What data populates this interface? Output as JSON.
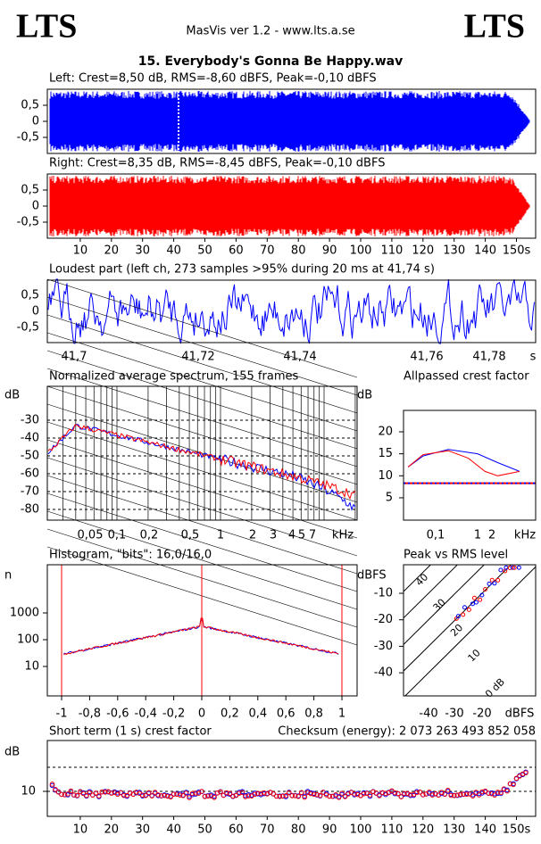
{
  "header": {
    "logo_left": "LTS",
    "app": "MasVis ver 1.2 - www.lts.a.se",
    "logo_right": "LTS"
  },
  "track": "15. Everybody's Gonna Be Happy.wav",
  "left": {
    "title": "Left: Crest=8,50 dB, RMS=-8,60 dBFS, Peak=-0,10 dBFS",
    "yticks": [
      "0,5",
      "0",
      "-0,5"
    ]
  },
  "right": {
    "title": "Right: Crest=8,35 dB, RMS=-8,45 dBFS, Peak=-0,10 dBFS",
    "yticks": [
      "0,5",
      "0",
      "-0,5"
    ]
  },
  "time_axis": [
    "10",
    "20",
    "30",
    "40",
    "50",
    "60",
    "70",
    "80",
    "90",
    "100",
    "110",
    "120",
    "130",
    "140",
    "150s"
  ],
  "loudest": {
    "title": "Loudest part (left  ch, 273 samples >95% during 20 ms at 41,74 s)",
    "yticks": [
      "0,5",
      "0",
      "-0,5"
    ],
    "xticks": [
      "41,7",
      "41,72",
      "41,74",
      "41,76",
      "41,78",
      "s"
    ]
  },
  "spectrum": {
    "title": "Normalized average spectrum, 155 frames",
    "y_unit": "dB",
    "yticks": [
      "-30",
      "-40",
      "-50",
      "-60",
      "-70",
      "-80"
    ],
    "xticks": [
      "0,05",
      "0,1",
      "0,2",
      "0,5",
      "1",
      "2",
      "3",
      "4",
      "5",
      "7",
      "kHz"
    ]
  },
  "crest": {
    "title": "Allpassed crest factor",
    "y_unit": "dB",
    "yticks": [
      "20",
      "15",
      "10",
      "5"
    ],
    "xticks": [
      "0,1",
      "1",
      "2",
      "kHz"
    ]
  },
  "histogram": {
    "title": "Histogram, \"bits\": 16,0/16,0",
    "y_unit": "n",
    "yticks": [
      "1000",
      "100",
      "10"
    ],
    "xticks": [
      "-1",
      "-0,8",
      "-0,6",
      "-0,4",
      "-0,2",
      "0",
      "0,2",
      "0,4",
      "0,6",
      "0,8",
      "1"
    ]
  },
  "peak_rms": {
    "title": "Peak vs RMS level",
    "y_unit": "dBFS",
    "yticks": [
      "-10",
      "-20",
      "-30",
      "-40"
    ],
    "xticks": [
      "-40",
      "-30",
      "-20",
      "dBFS"
    ],
    "line_labels": [
      "40",
      "30",
      "20",
      "10",
      "0 dB"
    ]
  },
  "short_term": {
    "title": "Short term (1 s) crest factor",
    "checksum": "Checksum (energy):  2 073 263 493 852 058",
    "y_unit": "dB",
    "yticks": [
      "10"
    ]
  }
}
